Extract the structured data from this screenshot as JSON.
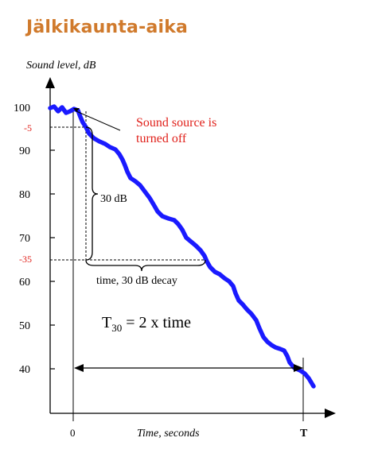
{
  "title": "Jälkikaunta-aika",
  "y_axis_label": "Sound level, dB",
  "x_axis_label": "Time, seconds",
  "y_ticks": [
    "100",
    "90",
    "80",
    "70",
    "60",
    "50",
    "40"
  ],
  "y_markers": [
    "-5",
    "-35"
  ],
  "x_ticks": [
    "0",
    "T"
  ],
  "annotation_source_line1": "Sound source is",
  "annotation_source_line2": "turned off",
  "annotation_decay_range": "30 dB",
  "annotation_decay_time": "time, 30 dB decay",
  "formula_prefix": "T",
  "formula_subscript": "30",
  "formula_suffix": " = 2 x time",
  "colors": {
    "title": "#d07a2c",
    "curve": "#1a1aff",
    "annotation": "#e0201a",
    "axis": "#000000"
  }
}
